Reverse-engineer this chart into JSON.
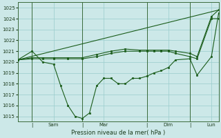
{
  "background_color": "#cce8e8",
  "grid_color": "#99cccc",
  "line_color": "#1a5c1a",
  "dark_line_color": "#336633",
  "xlabel": "Pression niveau de la mer( hPa )",
  "ylim": [
    1014.5,
    1025.5
  ],
  "xlim": [
    0,
    28
  ],
  "ytick_vals": [
    1015,
    1016,
    1017,
    1018,
    1019,
    1020,
    1021,
    1022,
    1023,
    1024,
    1025
  ],
  "vline_positions": [
    2,
    9,
    18,
    24
  ],
  "xtick_positions": [
    2,
    5,
    9,
    12,
    18,
    21,
    24,
    27
  ],
  "xtick_labels": [
    "|",
    "Sam",
    "|",
    "Mar",
    "|",
    "Dim",
    "|",
    "Lun"
  ],
  "series_wavy": {
    "x": [
      0,
      2,
      3.5,
      5,
      6,
      7,
      8,
      9,
      10,
      11,
      12,
      13,
      14,
      15,
      16,
      17,
      18,
      19,
      20,
      21,
      22,
      24,
      25,
      27,
      28
    ],
    "y": [
      1020.2,
      1021.0,
      1020.0,
      1019.8,
      1017.8,
      1016.0,
      1015.0,
      1014.8,
      1015.3,
      1017.8,
      1018.5,
      1018.5,
      1018.0,
      1018.0,
      1018.5,
      1018.5,
      1018.7,
      1019.0,
      1019.2,
      1019.5,
      1020.2,
      1020.3,
      1018.8,
      1020.5,
      1024.5
    ]
  },
  "series_flat": {
    "x": [
      0,
      2,
      3.5,
      5,
      7,
      9,
      11,
      13,
      15,
      17,
      18,
      19,
      20,
      21,
      22,
      24,
      25,
      27,
      28
    ],
    "y": [
      1020.2,
      1020.3,
      1020.3,
      1020.3,
      1020.3,
      1020.3,
      1020.5,
      1020.8,
      1021.0,
      1021.0,
      1021.0,
      1021.0,
      1021.0,
      1021.0,
      1020.8,
      1020.5,
      1020.3,
      1024.0,
      1024.0
    ]
  },
  "series_flat2": {
    "x": [
      0,
      2,
      3.5,
      5,
      7,
      9,
      11,
      13,
      15,
      17,
      18,
      19,
      20,
      21,
      22,
      24,
      25,
      27,
      28
    ],
    "y": [
      1020.2,
      1020.4,
      1020.4,
      1020.4,
      1020.4,
      1020.4,
      1020.7,
      1021.0,
      1021.2,
      1021.1,
      1021.1,
      1021.1,
      1021.1,
      1021.1,
      1021.0,
      1020.8,
      1020.5,
      1024.2,
      1024.8
    ]
  },
  "series_diagonal": {
    "x": [
      0,
      28
    ],
    "y": [
      1020.2,
      1024.8
    ]
  }
}
